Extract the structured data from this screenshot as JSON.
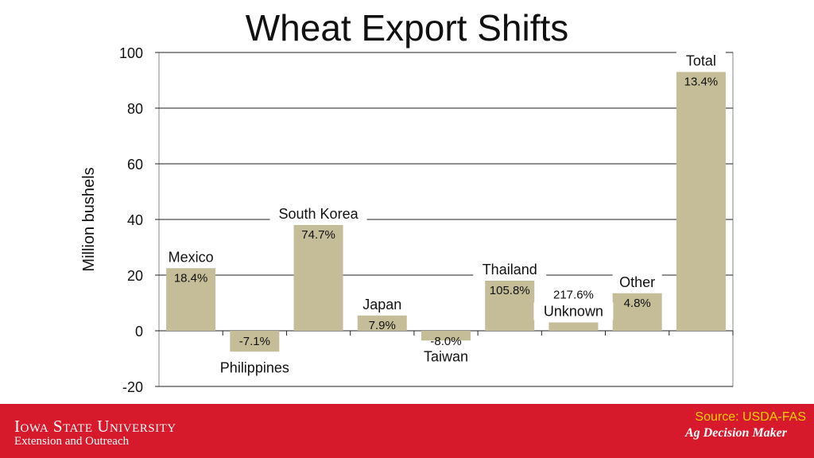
{
  "title": "Wheat Export Shifts",
  "chart_data": {
    "type": "bar",
    "ylabel": "Million bushels",
    "ylim": [
      -20,
      100
    ],
    "yticks": [
      -20,
      0,
      20,
      40,
      60,
      80,
      100
    ],
    "grid": true,
    "bar_color": "#c4bd97",
    "categories": [
      "Mexico",
      "Philippines",
      "South Korea",
      "Japan",
      "Taiwan",
      "Thailand",
      "Unknown",
      "Other",
      "Total"
    ],
    "values": [
      22.5,
      -7.5,
      38,
      5.5,
      -3.5,
      18,
      3,
      13.5,
      93
    ],
    "percent_labels": [
      "18.4%",
      "-7.1%",
      "74.7%",
      "7.9%",
      "-8.0%",
      "105.8%",
      "217.6%",
      "4.8%",
      "13.4%"
    ]
  },
  "footer": {
    "university": "Iowa State University",
    "unit": "Extension and Outreach",
    "source": "Source: USDA-FAS",
    "brand": "Ag Decision Maker"
  }
}
